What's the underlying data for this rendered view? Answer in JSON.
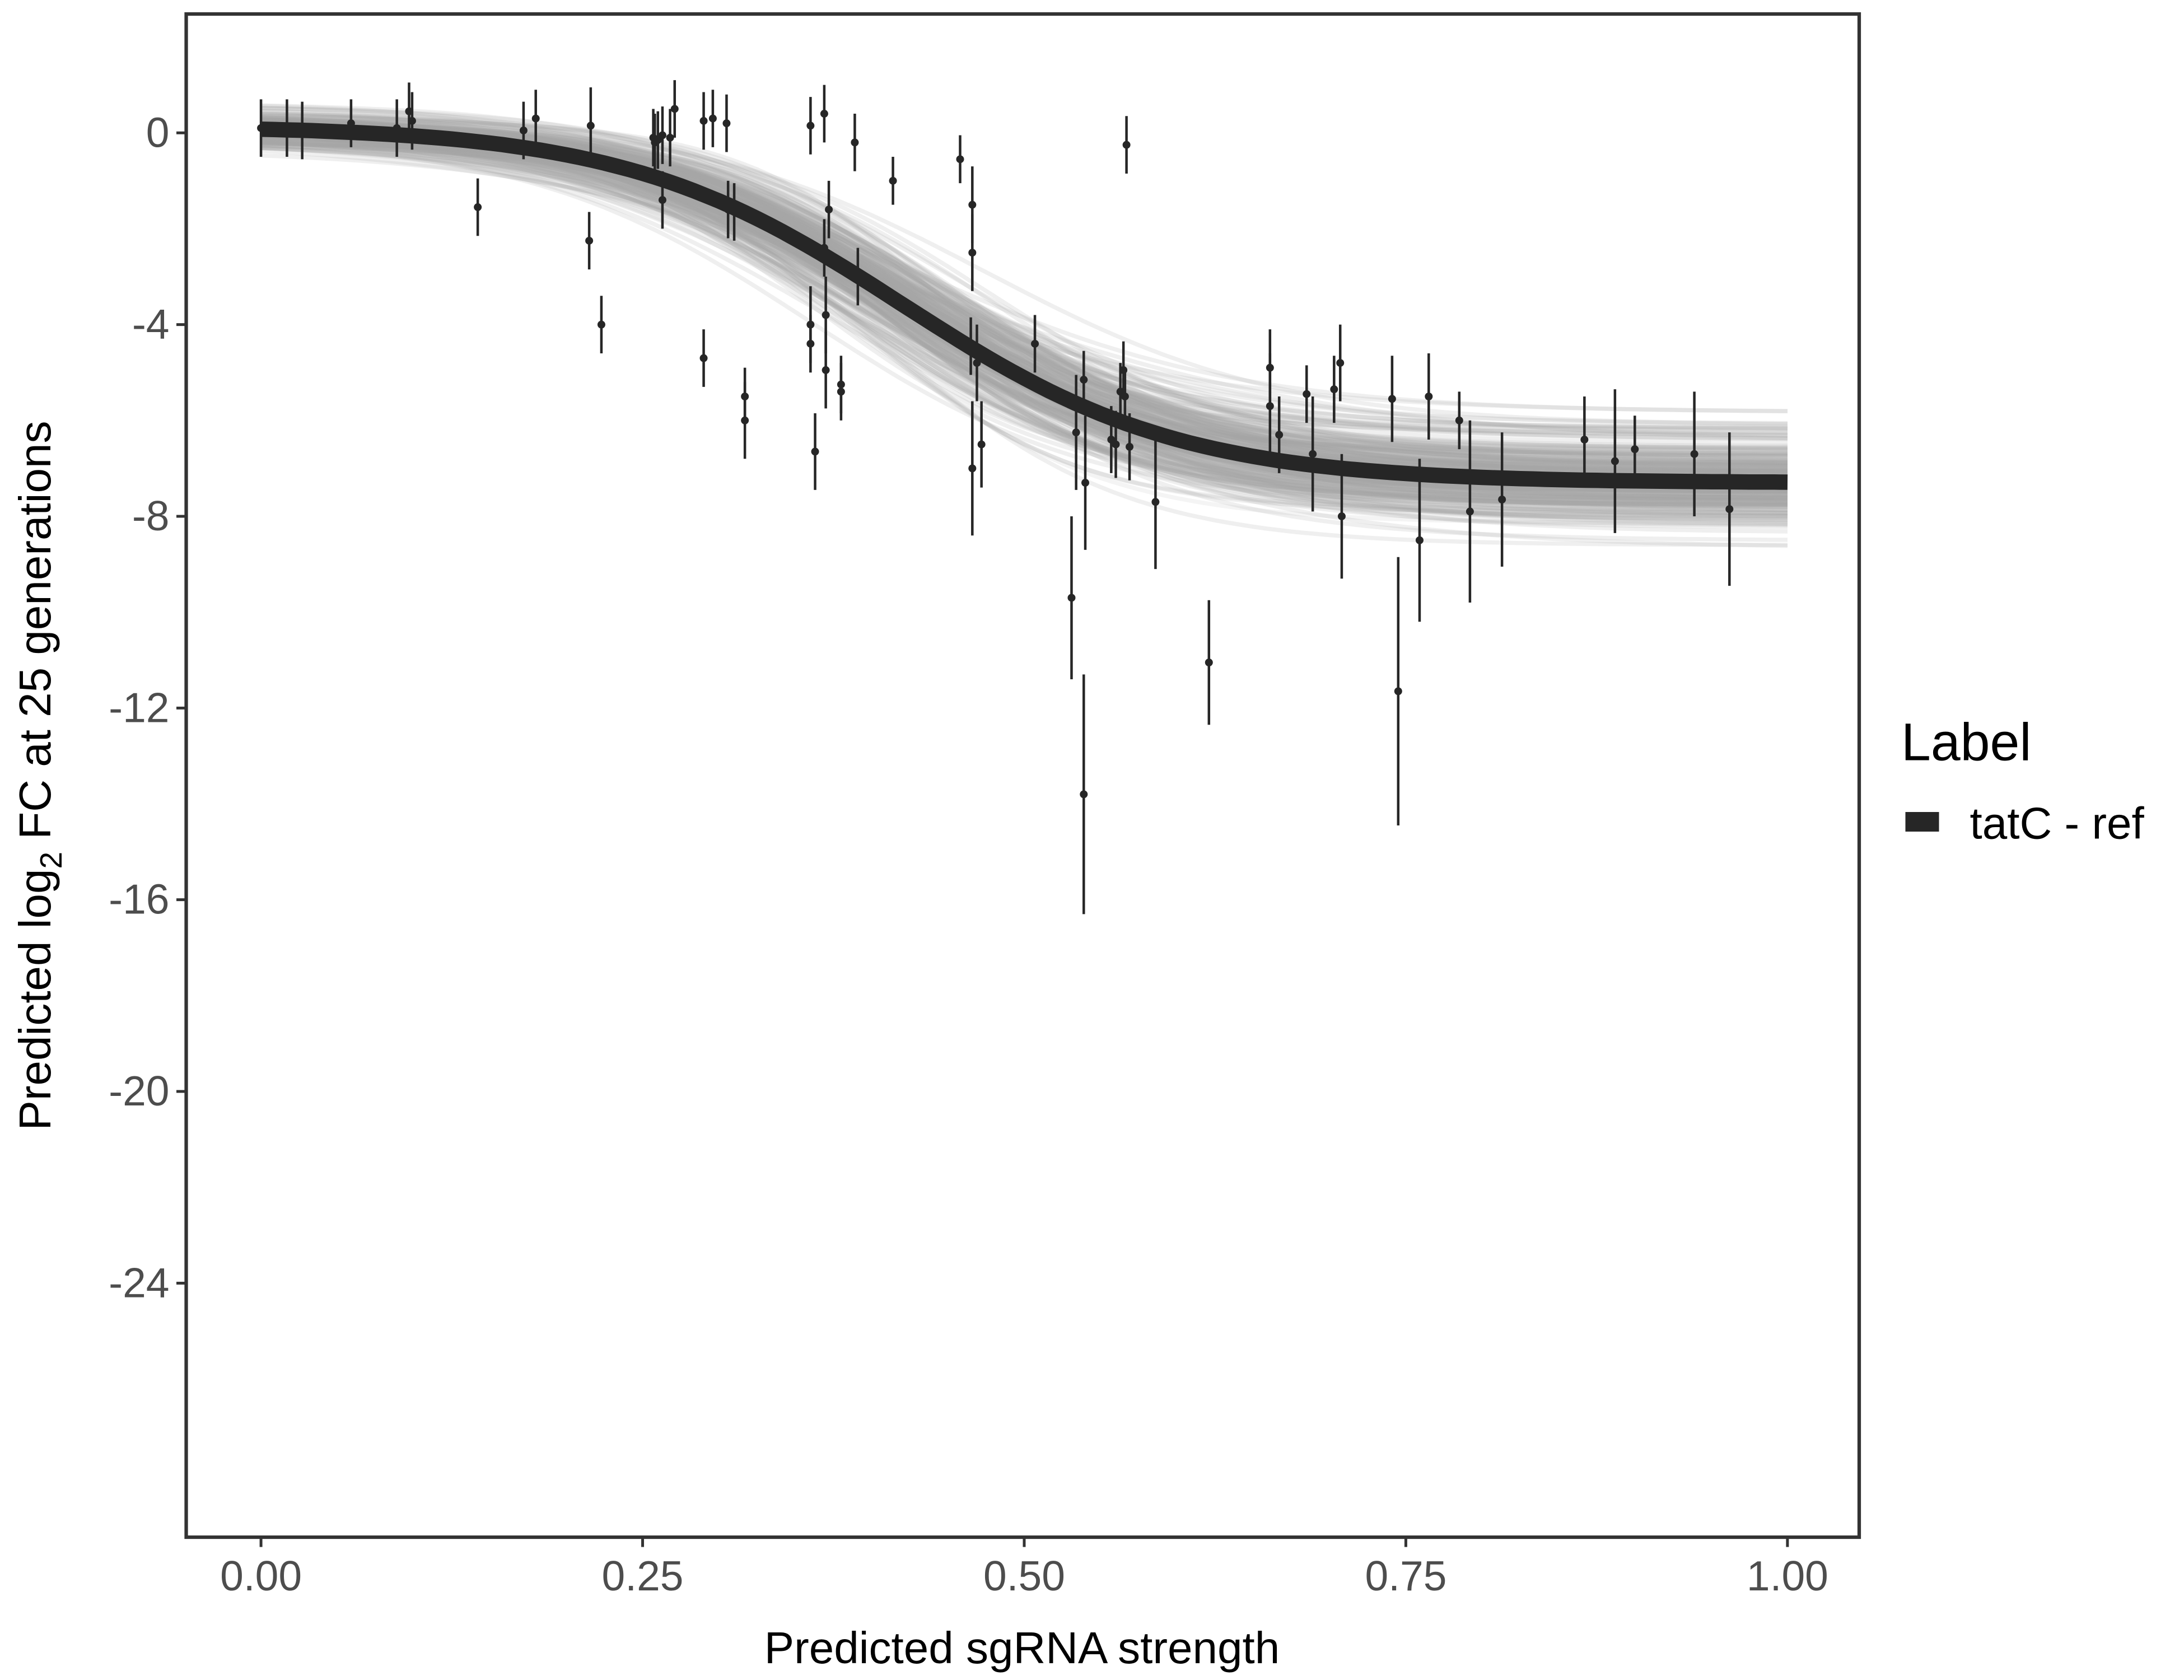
{
  "chart_data": {
    "type": "scatter",
    "title": "",
    "xlabel": "Predicted sgRNA strength",
    "ylabel_parts": {
      "pre": "Predicted  log",
      "sub": "2",
      "post": " FC at 25 generations"
    },
    "xlim": [
      -0.049,
      1.047
    ],
    "ylim": [
      -29.3,
      2.48
    ],
    "x_ticks": [
      0,
      0.25,
      0.5,
      0.75,
      1.0
    ],
    "x_tick_labels": [
      "0.00",
      "0.25",
      "0.50",
      "0.75",
      "1.00"
    ],
    "y_ticks": [
      0,
      -4,
      -8,
      -12,
      -16,
      -20,
      -24
    ],
    "y_tick_labels": [
      "0",
      "-4",
      "-8",
      "-12",
      "-16",
      "-20",
      "-24"
    ],
    "grid": false,
    "legend": {
      "title": "Label",
      "placement": "right",
      "entries": [
        {
          "label": "tatC - ref",
          "color": "#262626"
        }
      ]
    },
    "fit_curve": {
      "model": "logistic",
      "upper": 0.15,
      "lower": -7.3,
      "midpoint": 0.42,
      "slope": 11,
      "color": "#262626"
    },
    "posterior_band_color": "#a6a6a6",
    "points": [
      {
        "x": 0.0,
        "y": 0.1,
        "err": 0.6
      },
      {
        "x": 0.017,
        "y": 0.1,
        "err": 0.6
      },
      {
        "x": 0.027,
        "y": 0.05,
        "err": 0.6
      },
      {
        "x": 0.059,
        "y": 0.2,
        "err": 0.5
      },
      {
        "x": 0.089,
        "y": 0.1,
        "err": 0.6
      },
      {
        "x": 0.097,
        "y": 0.45,
        "err": 0.6
      },
      {
        "x": 0.099,
        "y": 0.25,
        "err": 0.6
      },
      {
        "x": 0.142,
        "y": -1.55,
        "err": 0.6
      },
      {
        "x": 0.172,
        "y": 0.05,
        "err": 0.6
      },
      {
        "x": 0.18,
        "y": 0.3,
        "err": 0.6
      },
      {
        "x": 0.216,
        "y": 0.15,
        "err": 0.8
      },
      {
        "x": 0.215,
        "y": -2.25,
        "err": 0.6
      },
      {
        "x": 0.223,
        "y": -4.0,
        "err": 0.6
      },
      {
        "x": 0.257,
        "y": -0.1,
        "err": 0.6
      },
      {
        "x": 0.258,
        "y": -0.2,
        "err": 0.6
      },
      {
        "x": 0.26,
        "y": -0.15,
        "err": 0.6
      },
      {
        "x": 0.263,
        "y": -0.05,
        "err": 0.6
      },
      {
        "x": 0.263,
        "y": -1.4,
        "err": 0.6
      },
      {
        "x": 0.268,
        "y": -0.1,
        "err": 0.6
      },
      {
        "x": 0.271,
        "y": 0.5,
        "err": 0.6
      },
      {
        "x": 0.29,
        "y": 0.25,
        "err": 0.6
      },
      {
        "x": 0.29,
        "y": -4.7,
        "err": 0.6
      },
      {
        "x": 0.296,
        "y": 0.3,
        "err": 0.6
      },
      {
        "x": 0.305,
        "y": 0.2,
        "err": 0.6
      },
      {
        "x": 0.306,
        "y": -1.6,
        "err": 0.6
      },
      {
        "x": 0.31,
        "y": -1.65,
        "err": 0.6
      },
      {
        "x": 0.317,
        "y": -5.5,
        "err": 0.6
      },
      {
        "x": 0.317,
        "y": -6.0,
        "err": 0.8
      },
      {
        "x": 0.36,
        "y": 0.15,
        "err": 0.6
      },
      {
        "x": 0.369,
        "y": 0.4,
        "err": 0.6
      },
      {
        "x": 0.389,
        "y": -0.2,
        "err": 0.6
      },
      {
        "x": 0.36,
        "y": -4.0,
        "err": 0.8
      },
      {
        "x": 0.36,
        "y": -4.4,
        "err": 0.6
      },
      {
        "x": 0.363,
        "y": -6.65,
        "err": 0.8
      },
      {
        "x": 0.369,
        "y": -2.4,
        "err": 0.6
      },
      {
        "x": 0.372,
        "y": -1.6,
        "err": 0.6
      },
      {
        "x": 0.37,
        "y": -3.8,
        "err": 0.8
      },
      {
        "x": 0.37,
        "y": -4.95,
        "err": 0.8
      },
      {
        "x": 0.38,
        "y": -5.25,
        "err": 0.6
      },
      {
        "x": 0.38,
        "y": -5.4,
        "err": 0.6
      },
      {
        "x": 0.391,
        "y": -3.0,
        "err": 0.6
      },
      {
        "x": 0.414,
        "y": -1.0,
        "err": 0.5
      },
      {
        "x": 0.458,
        "y": -0.55,
        "err": 0.5
      },
      {
        "x": 0.466,
        "y": -1.5,
        "err": 0.8
      },
      {
        "x": 0.466,
        "y": -2.5,
        "err": 0.8
      },
      {
        "x": 0.465,
        "y": -4.45,
        "err": 0.6
      },
      {
        "x": 0.466,
        "y": -7.0,
        "err": 1.4
      },
      {
        "x": 0.469,
        "y": -4.8,
        "err": 0.8
      },
      {
        "x": 0.472,
        "y": -6.5,
        "err": 0.9
      },
      {
        "x": 0.507,
        "y": -4.4,
        "err": 0.6
      },
      {
        "x": 0.531,
        "y": -9.7,
        "err": 1.7
      },
      {
        "x": 0.534,
        "y": -6.25,
        "err": 1.2
      },
      {
        "x": 0.539,
        "y": -13.8,
        "err": 2.5
      },
      {
        "x": 0.539,
        "y": -5.15,
        "err": 0.6
      },
      {
        "x": 0.54,
        "y": -7.3,
        "err": 1.4
      },
      {
        "x": 0.557,
        "y": -6.4,
        "err": 0.7
      },
      {
        "x": 0.56,
        "y": -6.5,
        "err": 0.7
      },
      {
        "x": 0.563,
        "y": -5.4,
        "err": 0.6
      },
      {
        "x": 0.565,
        "y": -4.95,
        "err": 0.6
      },
      {
        "x": 0.566,
        "y": -5.5,
        "err": 0.6
      },
      {
        "x": 0.567,
        "y": -0.25,
        "err": 0.6
      },
      {
        "x": 0.569,
        "y": -6.55,
        "err": 0.7
      },
      {
        "x": 0.586,
        "y": -7.7,
        "err": 1.4
      },
      {
        "x": 0.621,
        "y": -11.05,
        "err": 1.3
      },
      {
        "x": 0.661,
        "y": -4.9,
        "err": 0.8
      },
      {
        "x": 0.661,
        "y": -5.7,
        "err": 1.1
      },
      {
        "x": 0.667,
        "y": -6.3,
        "err": 0.8
      },
      {
        "x": 0.685,
        "y": -5.45,
        "err": 0.6
      },
      {
        "x": 0.689,
        "y": -6.7,
        "err": 1.2
      },
      {
        "x": 0.703,
        "y": -5.35,
        "err": 0.7
      },
      {
        "x": 0.707,
        "y": -4.8,
        "err": 0.8
      },
      {
        "x": 0.708,
        "y": -8.0,
        "err": 1.3
      },
      {
        "x": 0.741,
        "y": -5.55,
        "err": 0.9
      },
      {
        "x": 0.745,
        "y": -11.65,
        "err": 2.8
      },
      {
        "x": 0.759,
        "y": -8.5,
        "err": 1.7
      },
      {
        "x": 0.765,
        "y": -5.5,
        "err": 0.9
      },
      {
        "x": 0.785,
        "y": -6.0,
        "err": 0.6
      },
      {
        "x": 0.792,
        "y": -7.9,
        "err": 1.9
      },
      {
        "x": 0.813,
        "y": -7.65,
        "err": 1.4
      },
      {
        "x": 0.867,
        "y": -6.4,
        "err": 0.9
      },
      {
        "x": 0.887,
        "y": -6.85,
        "err": 1.5
      },
      {
        "x": 0.9,
        "y": -6.6,
        "err": 0.7
      },
      {
        "x": 0.939,
        "y": -6.7,
        "err": 1.3
      },
      {
        "x": 0.962,
        "y": -7.85,
        "err": 1.6
      }
    ]
  }
}
